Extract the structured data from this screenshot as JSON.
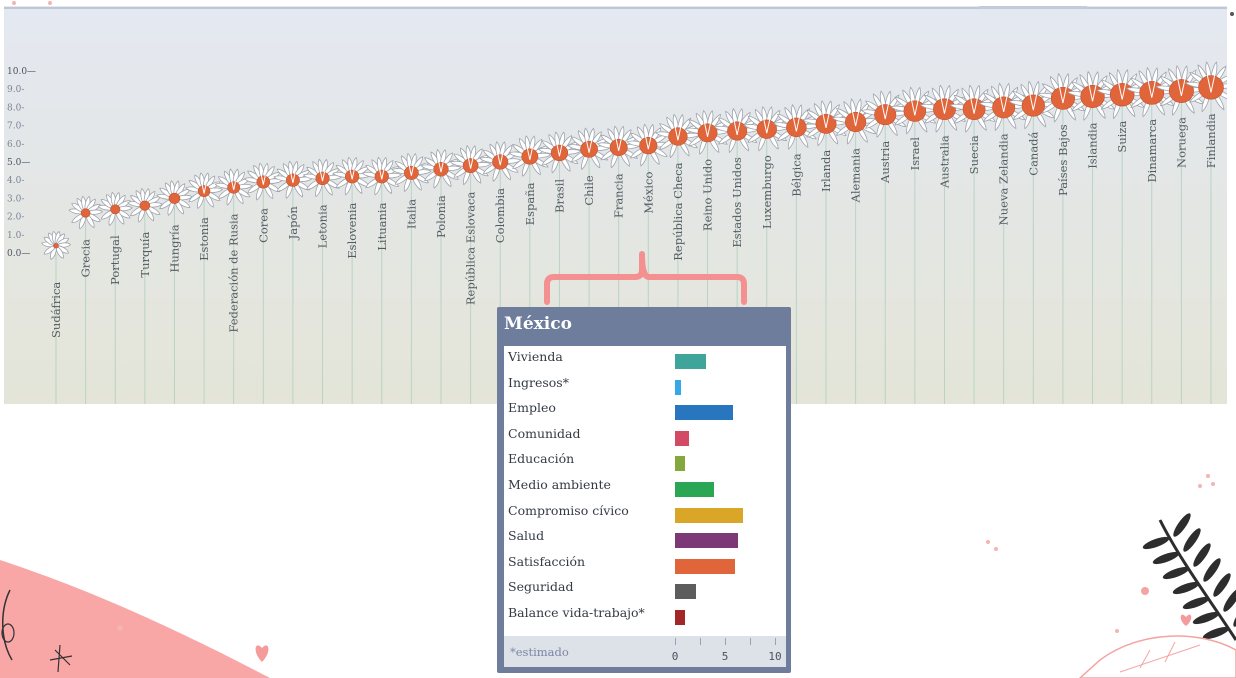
{
  "chart_data": {
    "type": "scatter",
    "title": "",
    "xlabel": "",
    "ylabel": "",
    "ylim": [
      0,
      10
    ],
    "yticks": [
      "10.0",
      "9.0",
      "8.0",
      "7.0",
      "6.0",
      "5.0",
      "4.0",
      "3.0",
      "2.0",
      "1.0",
      "0.0"
    ],
    "categories": [
      "Sudáfrica",
      "Grecia",
      "Portugal",
      "Turquía",
      "Hungría",
      "Estonia",
      "Federación de Rusia",
      "Corea",
      "Japón",
      "Letonia",
      "Eslovenia",
      "Lituania",
      "Italia",
      "Polonia",
      "República Eslovaca",
      "Colombia",
      "España",
      "Brasil",
      "Chile",
      "Francia",
      "México",
      "República Checa",
      "Reino Unido",
      "Estados Unidos",
      "Luxemburgo",
      "Bélgica",
      "Irlanda",
      "Alemania",
      "Austria",
      "Israel",
      "Australia",
      "Suecia",
      "Nueva Zelandia",
      "Canadá",
      "Países Bajos",
      "Islandia",
      "Suiza",
      "Dinamarca",
      "Noruega",
      "Finlandia"
    ],
    "values": [
      0.4,
      2.2,
      2.4,
      2.6,
      3.0,
      3.4,
      3.6,
      3.9,
      4.0,
      4.1,
      4.2,
      4.2,
      4.4,
      4.6,
      4.8,
      5.0,
      5.3,
      5.5,
      5.7,
      5.8,
      5.9,
      6.4,
      6.6,
      6.7,
      6.8,
      6.9,
      7.1,
      7.2,
      7.6,
      7.8,
      7.9,
      7.9,
      8.0,
      8.1,
      8.5,
      8.6,
      8.7,
      8.8,
      8.9,
      9.1
    ],
    "flower_color": "#e0653a",
    "stem_color": "#b8d4c4",
    "selected": "México"
  },
  "popup": {
    "title": "México",
    "footnote": "*estimado",
    "axis": {
      "min": 0,
      "max": 10,
      "labels": [
        "0",
        "5",
        "10"
      ]
    },
    "dimensions": [
      {
        "label": "Vivienda",
        "value": 3.1,
        "color": "#3fa59a"
      },
      {
        "label": "Ingresos*",
        "value": 0.6,
        "color": "#36a8e6"
      },
      {
        "label": "Empleo",
        "value": 5.8,
        "color": "#2877be"
      },
      {
        "label": "Comunidad",
        "value": 1.4,
        "color": "#d24a63"
      },
      {
        "label": "Educación",
        "value": 1.0,
        "color": "#84a83e"
      },
      {
        "label": "Medio ambiente",
        "value": 3.9,
        "color": "#2ba655"
      },
      {
        "label": "Compromiso cívico",
        "value": 6.8,
        "color": "#d9a627"
      },
      {
        "label": "Salud",
        "value": 6.3,
        "color": "#7d3878"
      },
      {
        "label": "Satisfacción",
        "value": 6.0,
        "color": "#e0653a"
      },
      {
        "label": "Seguridad",
        "value": 2.1,
        "color": "#5d5d5d"
      },
      {
        "label": "Balance vida-trabajo*",
        "value": 1.0,
        "color": "#a32727"
      }
    ]
  }
}
